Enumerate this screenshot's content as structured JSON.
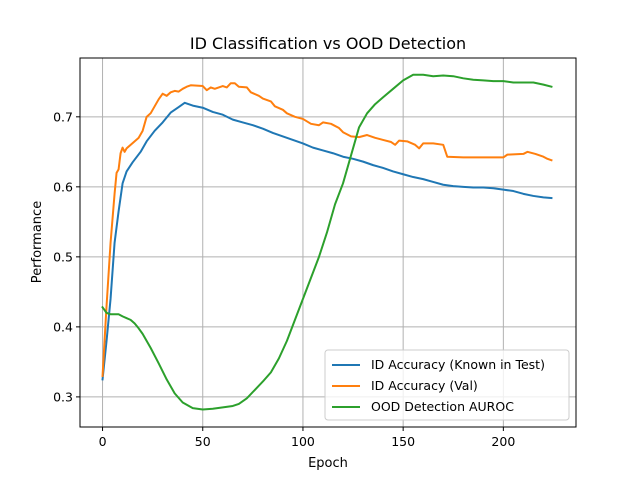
{
  "chart_data": {
    "type": "line",
    "title": "ID Classification vs OOD Detection",
    "xlabel": "Epoch",
    "ylabel": "Performance",
    "xlim": [
      -11.25,
      236.25
    ],
    "ylim": [
      0.257,
      0.784
    ],
    "xticks": [
      0,
      50,
      100,
      150,
      200
    ],
    "yticks": [
      0.3,
      0.4,
      0.5,
      0.6,
      0.7
    ],
    "ytick_labels": [
      "0.3",
      "0.4",
      "0.5",
      "0.6",
      "0.7"
    ],
    "grid": true,
    "legend_position": "lower-right",
    "series": [
      {
        "name": "ID Accuracy (Known in Test)",
        "color": "#1f77b4",
        "points": [
          [
            0,
            0.325
          ],
          [
            2,
            0.38
          ],
          [
            4,
            0.44
          ],
          [
            6,
            0.52
          ],
          [
            8,
            0.565
          ],
          [
            10,
            0.605
          ],
          [
            12,
            0.622
          ],
          [
            15,
            0.635
          ],
          [
            19,
            0.65
          ],
          [
            22,
            0.665
          ],
          [
            26,
            0.68
          ],
          [
            30,
            0.692
          ],
          [
            34,
            0.706
          ],
          [
            38,
            0.714
          ],
          [
            41,
            0.72
          ],
          [
            45,
            0.716
          ],
          [
            50,
            0.713
          ],
          [
            55,
            0.707
          ],
          [
            60,
            0.703
          ],
          [
            65,
            0.696
          ],
          [
            70,
            0.692
          ],
          [
            75,
            0.688
          ],
          [
            80,
            0.683
          ],
          [
            85,
            0.677
          ],
          [
            90,
            0.672
          ],
          [
            95,
            0.667
          ],
          [
            100,
            0.662
          ],
          [
            105,
            0.656
          ],
          [
            110,
            0.652
          ],
          [
            115,
            0.648
          ],
          [
            120,
            0.643
          ],
          [
            125,
            0.64
          ],
          [
            130,
            0.636
          ],
          [
            135,
            0.631
          ],
          [
            140,
            0.627
          ],
          [
            145,
            0.622
          ],
          [
            150,
            0.618
          ],
          [
            155,
            0.614
          ],
          [
            160,
            0.611
          ],
          [
            165,
            0.607
          ],
          [
            170,
            0.603
          ],
          [
            175,
            0.601
          ],
          [
            180,
            0.6
          ],
          [
            185,
            0.599
          ],
          [
            190,
            0.599
          ],
          [
            195,
            0.598
          ],
          [
            200,
            0.596
          ],
          [
            205,
            0.594
          ],
          [
            210,
            0.59
          ],
          [
            215,
            0.587
          ],
          [
            220,
            0.585
          ],
          [
            224,
            0.584
          ]
        ]
      },
      {
        "name": "ID Accuracy (Val)",
        "color": "#ff7f0e",
        "points": [
          [
            0,
            0.33
          ],
          [
            2,
            0.43
          ],
          [
            4,
            0.52
          ],
          [
            6,
            0.59
          ],
          [
            7,
            0.62
          ],
          [
            8,
            0.625
          ],
          [
            9,
            0.648
          ],
          [
            10,
            0.656
          ],
          [
            11,
            0.65
          ],
          [
            12,
            0.655
          ],
          [
            14,
            0.66
          ],
          [
            16,
            0.665
          ],
          [
            18,
            0.67
          ],
          [
            20,
            0.68
          ],
          [
            22,
            0.7
          ],
          [
            24,
            0.705
          ],
          [
            26,
            0.715
          ],
          [
            28,
            0.725
          ],
          [
            30,
            0.733
          ],
          [
            32,
            0.73
          ],
          [
            34,
            0.735
          ],
          [
            36,
            0.737
          ],
          [
            38,
            0.736
          ],
          [
            40,
            0.74
          ],
          [
            42,
            0.743
          ],
          [
            44,
            0.745
          ],
          [
            50,
            0.744
          ],
          [
            52,
            0.738
          ],
          [
            54,
            0.742
          ],
          [
            56,
            0.74
          ],
          [
            58,
            0.742
          ],
          [
            60,
            0.744
          ],
          [
            62,
            0.742
          ],
          [
            64,
            0.748
          ],
          [
            66,
            0.748
          ],
          [
            68,
            0.743
          ],
          [
            72,
            0.742
          ],
          [
            74,
            0.735
          ],
          [
            78,
            0.73
          ],
          [
            80,
            0.726
          ],
          [
            84,
            0.722
          ],
          [
            86,
            0.715
          ],
          [
            90,
            0.71
          ],
          [
            92,
            0.705
          ],
          [
            96,
            0.7
          ],
          [
            100,
            0.697
          ],
          [
            104,
            0.69
          ],
          [
            108,
            0.688
          ],
          [
            110,
            0.692
          ],
          [
            114,
            0.69
          ],
          [
            118,
            0.684
          ],
          [
            120,
            0.678
          ],
          [
            124,
            0.672
          ],
          [
            128,
            0.671
          ],
          [
            132,
            0.674
          ],
          [
            136,
            0.67
          ],
          [
            140,
            0.667
          ],
          [
            144,
            0.664
          ],
          [
            146,
            0.66
          ],
          [
            148,
            0.666
          ],
          [
            152,
            0.665
          ],
          [
            156,
            0.66
          ],
          [
            158,
            0.655
          ],
          [
            160,
            0.662
          ],
          [
            165,
            0.662
          ],
          [
            170,
            0.66
          ],
          [
            172,
            0.643
          ],
          [
            180,
            0.642
          ],
          [
            190,
            0.642
          ],
          [
            200,
            0.642
          ],
          [
            202,
            0.646
          ],
          [
            210,
            0.647
          ],
          [
            212,
            0.65
          ],
          [
            216,
            0.647
          ],
          [
            220,
            0.643
          ],
          [
            222,
            0.64
          ],
          [
            224,
            0.638
          ]
        ]
      },
      {
        "name": "OOD Detection AUROC",
        "color": "#2ca02c",
        "points": [
          [
            0,
            0.428
          ],
          [
            2,
            0.42
          ],
          [
            4,
            0.418
          ],
          [
            8,
            0.418
          ],
          [
            10,
            0.415
          ],
          [
            14,
            0.41
          ],
          [
            16,
            0.405
          ],
          [
            18,
            0.398
          ],
          [
            20,
            0.39
          ],
          [
            24,
            0.37
          ],
          [
            28,
            0.348
          ],
          [
            32,
            0.325
          ],
          [
            36,
            0.305
          ],
          [
            40,
            0.292
          ],
          [
            45,
            0.284
          ],
          [
            50,
            0.282
          ],
          [
            55,
            0.283
          ],
          [
            60,
            0.285
          ],
          [
            65,
            0.287
          ],
          [
            68,
            0.29
          ],
          [
            72,
            0.298
          ],
          [
            76,
            0.31
          ],
          [
            80,
            0.322
          ],
          [
            84,
            0.335
          ],
          [
            88,
            0.355
          ],
          [
            92,
            0.38
          ],
          [
            96,
            0.41
          ],
          [
            100,
            0.44
          ],
          [
            104,
            0.47
          ],
          [
            108,
            0.5
          ],
          [
            112,
            0.535
          ],
          [
            116,
            0.575
          ],
          [
            120,
            0.605
          ],
          [
            124,
            0.645
          ],
          [
            128,
            0.685
          ],
          [
            132,
            0.705
          ],
          [
            136,
            0.718
          ],
          [
            140,
            0.728
          ],
          [
            145,
            0.74
          ],
          [
            150,
            0.752
          ],
          [
            155,
            0.76
          ],
          [
            160,
            0.76
          ],
          [
            165,
            0.758
          ],
          [
            170,
            0.759
          ],
          [
            175,
            0.758
          ],
          [
            180,
            0.755
          ],
          [
            185,
            0.753
          ],
          [
            190,
            0.752
          ],
          [
            195,
            0.751
          ],
          [
            200,
            0.751
          ],
          [
            205,
            0.749
          ],
          [
            210,
            0.749
          ],
          [
            215,
            0.749
          ],
          [
            220,
            0.746
          ],
          [
            224,
            0.743
          ]
        ]
      }
    ]
  }
}
